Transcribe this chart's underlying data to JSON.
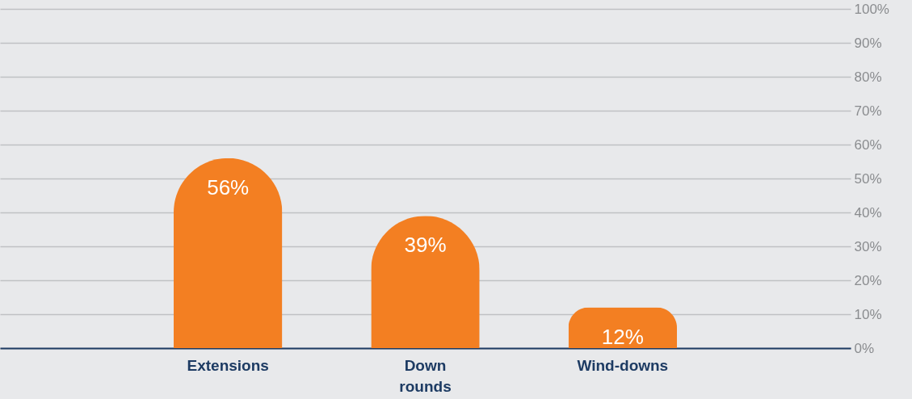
{
  "chart_data": {
    "type": "bar",
    "categories": [
      "Extensions",
      "Down rounds",
      "Wind-downs"
    ],
    "values": [
      56,
      39,
      12
    ],
    "color": "#f37f22",
    "ylim": [
      0,
      100
    ],
    "yticks": [
      {
        "value": 0,
        "label": "0%"
      },
      {
        "value": 10,
        "label": "10%"
      },
      {
        "value": 20,
        "label": "20%"
      },
      {
        "value": 30,
        "label": "30%"
      },
      {
        "value": 40,
        "label": "40%"
      },
      {
        "value": 50,
        "label": "50%"
      },
      {
        "value": 60,
        "label": "60%"
      },
      {
        "value": 70,
        "label": "70%"
      },
      {
        "value": 80,
        "label": "80%"
      },
      {
        "value": 90,
        "label": "90%"
      },
      {
        "value": 100,
        "label": "100%"
      }
    ],
    "value_labels": [
      "56%",
      "39%",
      "12%"
    ],
    "grid": "y"
  }
}
